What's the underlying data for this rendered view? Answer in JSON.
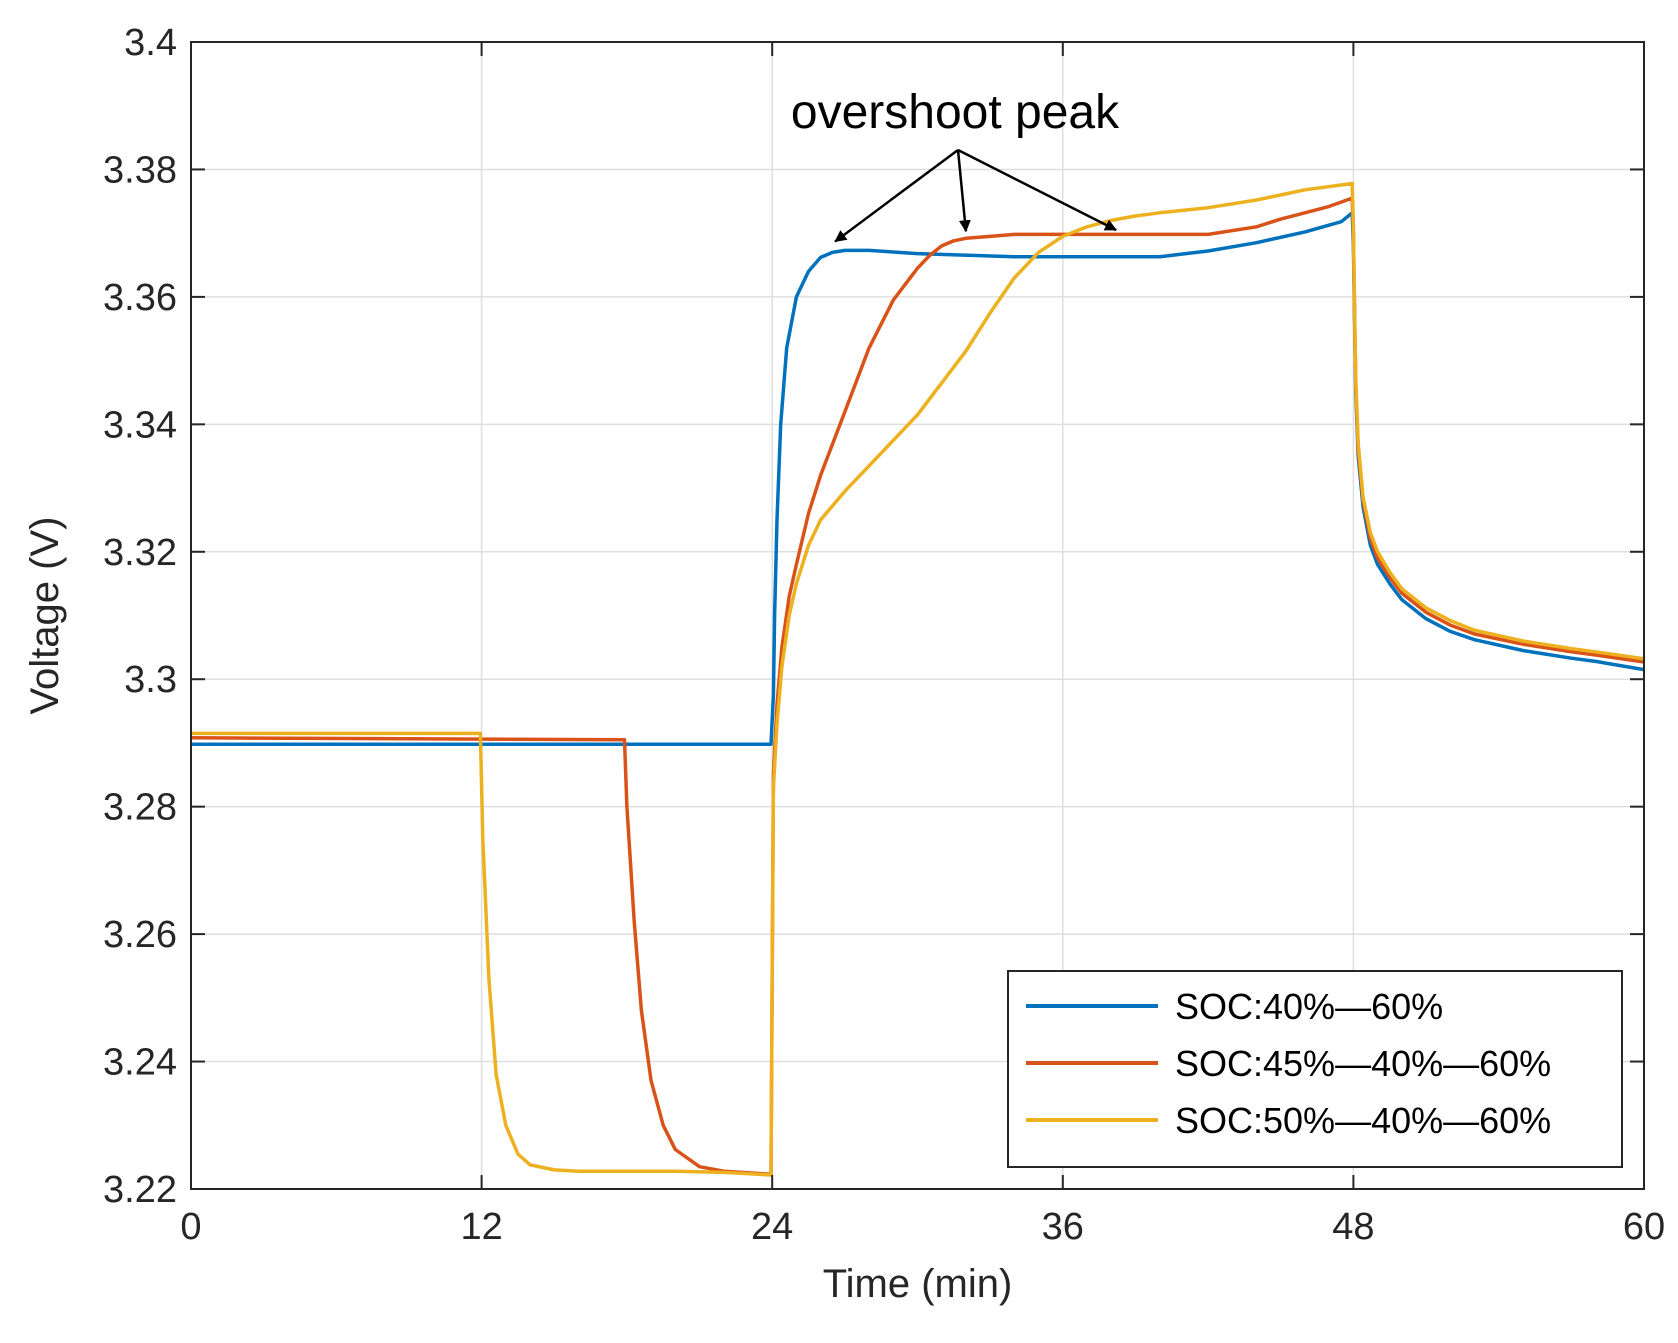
{
  "chart_data": {
    "type": "line",
    "title": "",
    "xlabel": "Time (min)",
    "ylabel": "Voltage (V)",
    "xlim": [
      0,
      60
    ],
    "ylim": [
      3.22,
      3.4
    ],
    "xticks": [
      0,
      12,
      24,
      36,
      48,
      60
    ],
    "xtick_labels": [
      "0",
      "12",
      "24",
      "36",
      "48",
      "60"
    ],
    "yticks": [
      3.22,
      3.24,
      3.26,
      3.28,
      3.3,
      3.32,
      3.34,
      3.36,
      3.38,
      3.4
    ],
    "ytick_labels": [
      "3.22",
      "3.24",
      "3.26",
      "3.28",
      "3.3",
      "3.32",
      "3.34",
      "3.36",
      "3.38",
      "3.4"
    ],
    "grid": true,
    "legend_position": "bottom-right",
    "annotation": {
      "text": "overshoot peak",
      "points": [
        [
          26.6,
          3.3687
        ],
        [
          32,
          3.3703
        ],
        [
          38.2,
          3.3705
        ]
      ]
    },
    "series": [
      {
        "name": "SOC:40%—60%",
        "color": "#0072BD",
        "x": [
          0,
          23.95,
          24.05,
          24.1,
          24.2,
          24.35,
          24.6,
          25.0,
          25.5,
          26.0,
          26.5,
          27,
          28,
          30,
          34,
          36,
          40,
          42,
          44,
          46,
          47.5,
          47.95,
          48.0,
          48.05,
          48.1,
          48.2,
          48.4,
          48.7,
          49.0,
          49.5,
          50,
          51,
          52,
          53,
          55,
          57,
          58,
          60
        ],
        "y": [
          3.2898,
          3.2898,
          3.2975,
          3.31,
          3.325,
          3.34,
          3.352,
          3.36,
          3.364,
          3.3662,
          3.367,
          3.3673,
          3.3673,
          3.3668,
          3.3663,
          3.3663,
          3.3663,
          3.3672,
          3.3685,
          3.3702,
          3.3718,
          3.3732,
          3.368,
          3.356,
          3.345,
          3.335,
          3.327,
          3.321,
          3.318,
          3.315,
          3.3125,
          3.3095,
          3.3075,
          3.3062,
          3.3045,
          3.3033,
          3.3028,
          3.3015
        ]
      },
      {
        "name": "SOC:45%—40%—60%",
        "color": "#D95319",
        "x": [
          0,
          17.9,
          18.0,
          18.3,
          18.6,
          19.0,
          19.5,
          20.0,
          21,
          22,
          23.95,
          24.05,
          24.2,
          24.4,
          24.7,
          25,
          25.5,
          26,
          27,
          28,
          29,
          30,
          30.5,
          31,
          31.5,
          32,
          33,
          34,
          36,
          40,
          42,
          44,
          45,
          46,
          47,
          47.95,
          48.0,
          48.05,
          48.1,
          48.2,
          48.4,
          48.7,
          49.0,
          49.5,
          50,
          51,
          52,
          53,
          55,
          57,
          58,
          60
        ],
        "y": [
          3.2908,
          3.2905,
          3.28,
          3.262,
          3.248,
          3.237,
          3.23,
          3.2262,
          3.2235,
          3.2228,
          3.2223,
          3.285,
          3.296,
          3.305,
          3.313,
          3.318,
          3.326,
          3.332,
          3.342,
          3.352,
          3.3595,
          3.3645,
          3.3665,
          3.368,
          3.3688,
          3.3692,
          3.3695,
          3.3698,
          3.3698,
          3.3698,
          3.3698,
          3.371,
          3.3722,
          3.3732,
          3.3742,
          3.3755,
          3.37,
          3.357,
          3.346,
          3.336,
          3.328,
          3.322,
          3.319,
          3.316,
          3.3135,
          3.3105,
          3.3085,
          3.3071,
          3.3055,
          3.3043,
          3.3038,
          3.3027
        ]
      },
      {
        "name": "SOC:50%—40%—60%",
        "color": "#EDB120",
        "x": [
          0,
          11.95,
          12.05,
          12.3,
          12.6,
          13.0,
          13.5,
          14,
          15,
          16,
          18,
          20,
          22,
          23.95,
          24.05,
          24.2,
          24.4,
          24.7,
          25,
          25.5,
          26,
          27,
          28,
          29,
          30,
          31,
          32,
          33,
          34,
          35,
          36,
          37,
          38,
          39,
          40,
          42,
          44,
          46,
          47.95,
          48.0,
          48.05,
          48.1,
          48.2,
          48.4,
          48.7,
          49.0,
          49.5,
          50,
          51,
          52,
          53,
          55,
          57,
          58,
          60
        ],
        "y": [
          3.2915,
          3.2915,
          3.275,
          3.253,
          3.238,
          3.23,
          3.2255,
          3.2238,
          3.223,
          3.2228,
          3.2228,
          3.2228,
          3.2226,
          3.2222,
          3.283,
          3.293,
          3.302,
          3.31,
          3.315,
          3.321,
          3.325,
          3.3295,
          3.3335,
          3.3375,
          3.3415,
          3.3465,
          3.3515,
          3.3575,
          3.363,
          3.367,
          3.3695,
          3.371,
          3.372,
          3.3727,
          3.3732,
          3.374,
          3.3752,
          3.3768,
          3.3778,
          3.371,
          3.358,
          3.347,
          3.337,
          3.3285,
          3.323,
          3.32,
          3.3168,
          3.3142,
          3.3112,
          3.3092,
          3.3077,
          3.306,
          3.3048,
          3.3043,
          3.3032
        ]
      }
    ]
  }
}
